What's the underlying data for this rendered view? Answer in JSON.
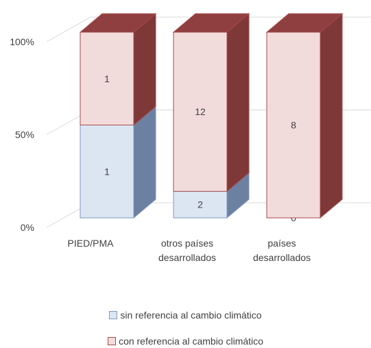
{
  "chart_data": {
    "type": "bar",
    "stacked": "percent",
    "categories": [
      "PIED/PMA",
      "otros países desarrollados",
      "países desarrollados"
    ],
    "category_lines": [
      [
        "PIED/PMA"
      ],
      [
        "otros países",
        "desarrollados"
      ],
      [
        "países",
        "desarrollados"
      ]
    ],
    "series": [
      {
        "name": "sin referencia al cambio climático",
        "values": [
          1,
          2,
          0
        ],
        "color": "#dce6f2",
        "edge": "#7f97bf"
      },
      {
        "name": "con referencia al cambio climático",
        "values": [
          1,
          12,
          8
        ],
        "color": "#f2dcdb",
        "edge": "#a84a4a"
      }
    ],
    "y_ticks": [
      "0%",
      "50%",
      "100%"
    ],
    "ylim": [
      0,
      100
    ],
    "legend_position": "bottom",
    "gridlines": true
  }
}
